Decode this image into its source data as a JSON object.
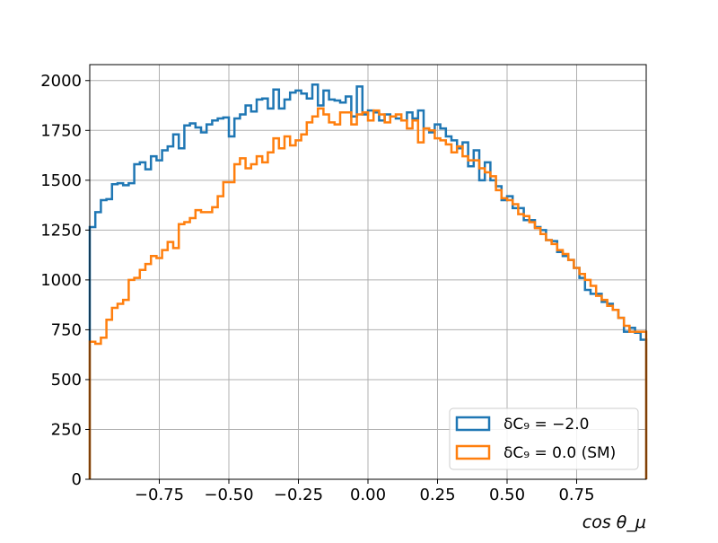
{
  "chart_data": {
    "type": "histogram",
    "title": "",
    "xlabel": "cos θ_μ",
    "ylabel": "",
    "xlim": [
      -1.0,
      1.0
    ],
    "ylim": [
      0,
      2080
    ],
    "grid": true,
    "legend_position": "lower-right",
    "xticks": [
      -0.75,
      -0.5,
      -0.25,
      0.0,
      0.25,
      0.5,
      0.75
    ],
    "xtick_labels": [
      "−0.75",
      "−0.50",
      "−0.25",
      "0.00",
      "0.25",
      "0.50",
      "0.75"
    ],
    "yticks": [
      0,
      250,
      500,
      750,
      1000,
      1250,
      1500,
      1750,
      2000
    ],
    "ytick_labels": [
      "0",
      "250",
      "500",
      "750",
      "1000",
      "1250",
      "1500",
      "1750",
      "2000"
    ],
    "bin_edges": {
      "start": -1.0,
      "stop": 1.0,
      "count": 100
    },
    "series": [
      {
        "name": "δC₉ = −2.0",
        "color": "#1f77b4",
        "values": [
          1265,
          1340,
          1400,
          1405,
          1480,
          1485,
          1475,
          1485,
          1580,
          1590,
          1555,
          1620,
          1600,
          1650,
          1670,
          1730,
          1660,
          1775,
          1785,
          1765,
          1740,
          1780,
          1800,
          1810,
          1815,
          1720,
          1810,
          1830,
          1875,
          1845,
          1905,
          1910,
          1860,
          1955,
          1860,
          1905,
          1940,
          1950,
          1935,
          1910,
          1980,
          1875,
          1950,
          1905,
          1900,
          1890,
          1920,
          1820,
          1970,
          1830,
          1850,
          1840,
          1800,
          1830,
          1820,
          1810,
          1800,
          1840,
          1810,
          1850,
          1760,
          1740,
          1780,
          1760,
          1720,
          1700,
          1660,
          1690,
          1570,
          1650,
          1500,
          1590,
          1500,
          1470,
          1400,
          1420,
          1360,
          1360,
          1300,
          1300,
          1265,
          1250,
          1200,
          1195,
          1140,
          1120,
          1100,
          1060,
          1010,
          950,
          930,
          930,
          890,
          880,
          850,
          810,
          740,
          760,
          735,
          700
        ]
      },
      {
        "name": "δC₉ = 0.0 (SM)",
        "color": "#ff7f0e",
        "values": [
          690,
          680,
          710,
          800,
          860,
          880,
          900,
          1000,
          1010,
          1050,
          1080,
          1120,
          1110,
          1150,
          1190,
          1160,
          1280,
          1290,
          1310,
          1350,
          1340,
          1340,
          1365,
          1420,
          1490,
          1490,
          1580,
          1610,
          1560,
          1580,
          1620,
          1590,
          1640,
          1710,
          1660,
          1720,
          1675,
          1700,
          1730,
          1790,
          1820,
          1860,
          1830,
          1790,
          1780,
          1840,
          1840,
          1780,
          1830,
          1840,
          1800,
          1850,
          1830,
          1790,
          1820,
          1830,
          1800,
          1760,
          1800,
          1690,
          1760,
          1750,
          1710,
          1700,
          1680,
          1640,
          1670,
          1620,
          1600,
          1600,
          1560,
          1540,
          1520,
          1450,
          1410,
          1400,
          1380,
          1330,
          1320,
          1290,
          1260,
          1230,
          1200,
          1180,
          1150,
          1130,
          1100,
          1060,
          1030,
          1000,
          970,
          920,
          900,
          870,
          850,
          810,
          770,
          740,
          740,
          740
        ]
      }
    ],
    "legend": [
      {
        "label": "δC₉ = −2.0",
        "color": "#1f77b4"
      },
      {
        "label": "δC₉ = 0.0 (SM)",
        "color": "#ff7f0e"
      }
    ]
  }
}
